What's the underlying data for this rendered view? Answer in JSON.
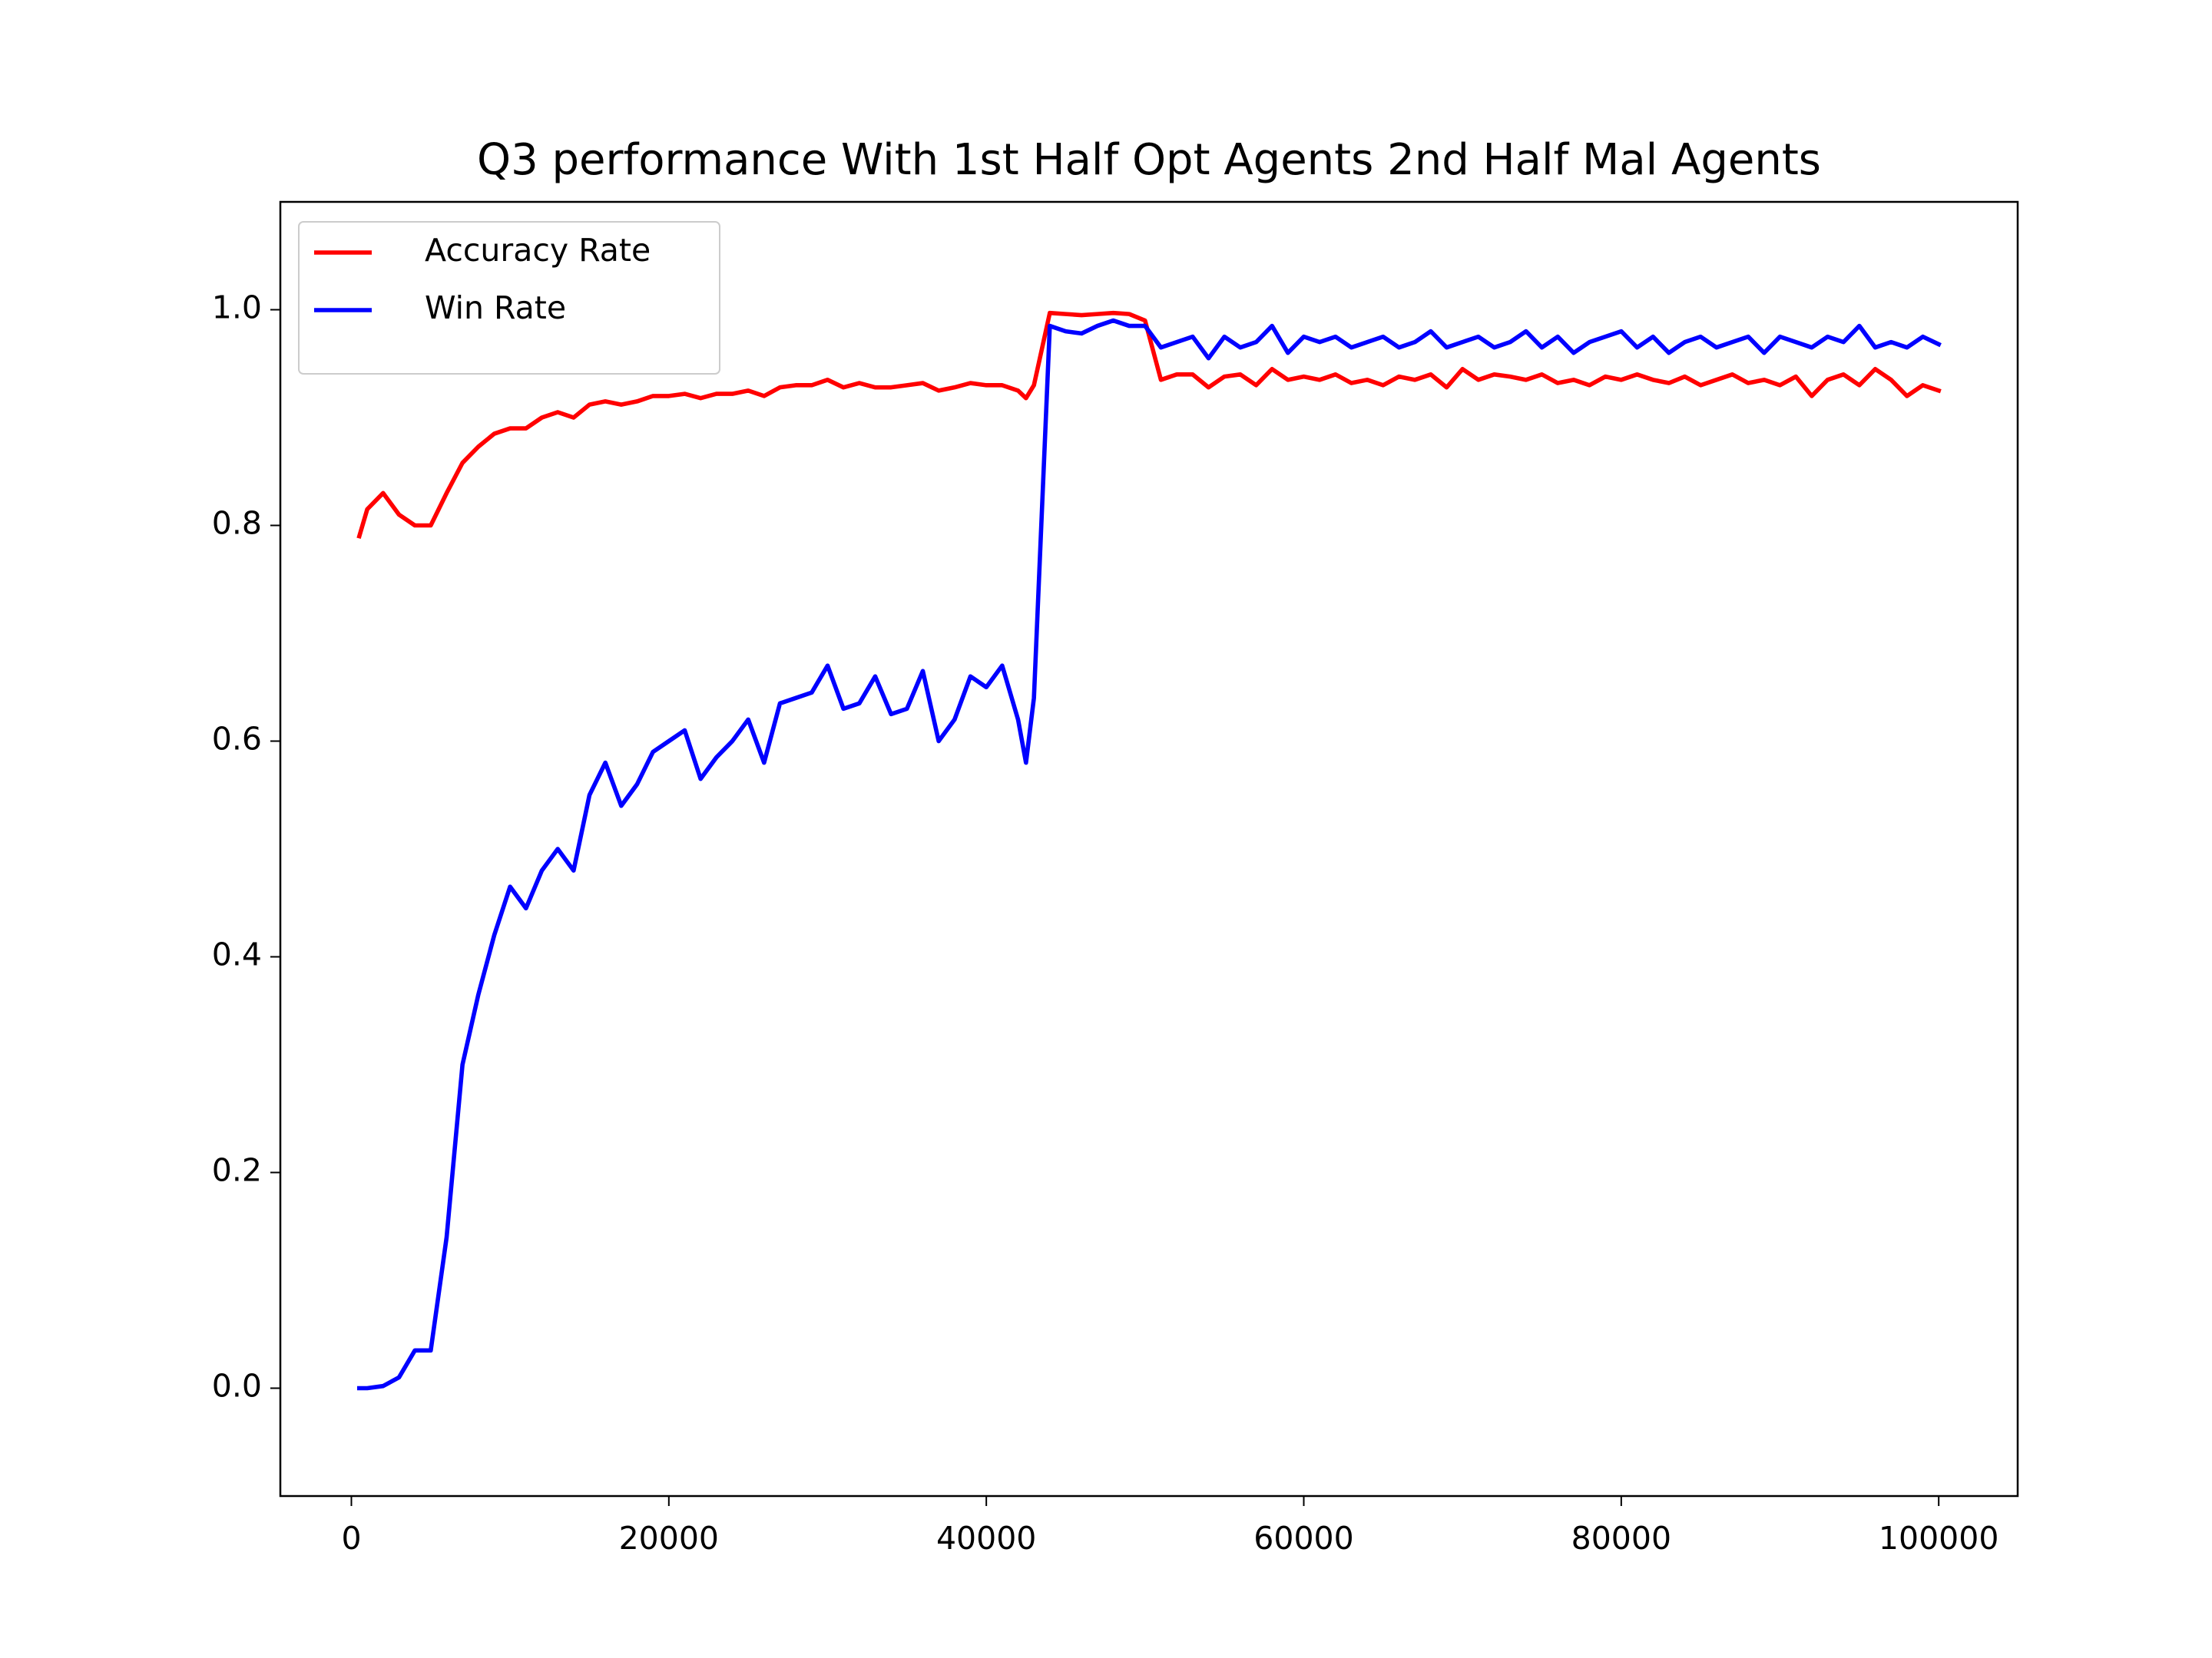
{
  "chart_data": {
    "type": "line",
    "title": "Q3 performance With 1st Half Opt Agents 2nd Half Mal Agents",
    "x": [
      500,
      1000,
      2000,
      3000,
      4000,
      5000,
      6000,
      7000,
      8000,
      9000,
      10000,
      11000,
      12000,
      13000,
      14000,
      15000,
      16000,
      17000,
      18000,
      19000,
      20000,
      21000,
      22000,
      23000,
      24000,
      25000,
      26000,
      27000,
      28000,
      29000,
      30000,
      31000,
      32000,
      33000,
      34000,
      35000,
      36000,
      37000,
      38000,
      39000,
      40000,
      41000,
      42000,
      42500,
      43000,
      44000,
      45000,
      46000,
      47000,
      48000,
      49000,
      50000,
      51000,
      52000,
      53000,
      54000,
      55000,
      56000,
      57000,
      58000,
      59000,
      60000,
      61000,
      62000,
      63000,
      64000,
      65000,
      66000,
      67000,
      68000,
      69000,
      70000,
      71000,
      72000,
      73000,
      74000,
      75000,
      76000,
      77000,
      78000,
      79000,
      80000,
      81000,
      82000,
      83000,
      84000,
      85000,
      86000,
      87000,
      88000,
      89000,
      90000,
      91000,
      92000,
      93000,
      94000,
      95000,
      96000,
      97000,
      98000,
      99000,
      100000
    ],
    "series": [
      {
        "name": "Accuracy Rate",
        "color": "#ff0000",
        "values": [
          0.79,
          0.815,
          0.83,
          0.81,
          0.8,
          0.8,
          0.83,
          0.858,
          0.873,
          0.885,
          0.89,
          0.89,
          0.9,
          0.905,
          0.9,
          0.912,
          0.915,
          0.912,
          0.915,
          0.92,
          0.92,
          0.922,
          0.918,
          0.922,
          0.922,
          0.925,
          0.92,
          0.928,
          0.93,
          0.93,
          0.935,
          0.928,
          0.932,
          0.928,
          0.928,
          0.93,
          0.932,
          0.925,
          0.928,
          0.932,
          0.93,
          0.93,
          0.925,
          0.918,
          0.93,
          0.997,
          0.996,
          0.995,
          0.996,
          0.997,
          0.996,
          0.99,
          0.935,
          0.94,
          0.94,
          0.928,
          0.938,
          0.94,
          0.93,
          0.945,
          0.935,
          0.938,
          0.935,
          0.94,
          0.932,
          0.935,
          0.93,
          0.938,
          0.935,
          0.94,
          0.928,
          0.945,
          0.935,
          0.94,
          0.938,
          0.935,
          0.94,
          0.932,
          0.935,
          0.93,
          0.938,
          0.935,
          0.94,
          0.935,
          0.932,
          0.938,
          0.93,
          0.935,
          0.94,
          0.932,
          0.935,
          0.93,
          0.938,
          0.92,
          0.935,
          0.94,
          0.93,
          0.945,
          0.935,
          0.92,
          0.93,
          0.925
        ]
      },
      {
        "name": "Win Rate",
        "color": "#0000ff",
        "values": [
          0,
          0,
          0.002,
          0.01,
          0.035,
          0.035,
          0.14,
          0.3,
          0.365,
          0.42,
          0.465,
          0.445,
          0.48,
          0.5,
          0.48,
          0.55,
          0.58,
          0.54,
          0.56,
          0.59,
          0.6,
          0.61,
          0.565,
          0.585,
          0.6,
          0.62,
          0.58,
          0.635,
          0.64,
          0.645,
          0.67,
          0.63,
          0.635,
          0.66,
          0.625,
          0.63,
          0.665,
          0.6,
          0.62,
          0.66,
          0.65,
          0.67,
          0.62,
          0.58,
          0.64,
          0.985,
          0.98,
          0.978,
          0.985,
          0.99,
          0.985,
          0.985,
          0.965,
          0.97,
          0.975,
          0.955,
          0.975,
          0.965,
          0.97,
          0.985,
          0.96,
          0.975,
          0.97,
          0.975,
          0.965,
          0.97,
          0.975,
          0.965,
          0.97,
          0.98,
          0.965,
          0.97,
          0.975,
          0.965,
          0.97,
          0.98,
          0.965,
          0.975,
          0.96,
          0.97,
          0.975,
          0.98,
          0.965,
          0.975,
          0.96,
          0.97,
          0.975,
          0.965,
          0.97,
          0.975,
          0.96,
          0.975,
          0.97,
          0.965,
          0.975,
          0.97,
          0.985,
          0.965,
          0.97,
          0.965,
          0.975,
          0.968
        ]
      }
    ],
    "xlim": [
      -4475,
      104975
    ],
    "ylim": [
      -0.1,
      1.1
    ],
    "xticks": [
      0,
      20000,
      40000,
      60000,
      80000,
      100000
    ],
    "yticks": [
      {
        "value": 0,
        "label": "0.0"
      },
      0.2,
      0.4,
      0.6,
      0.8,
      {
        "value": 1,
        "label": "1.0"
      }
    ],
    "legend": "upper left"
  }
}
